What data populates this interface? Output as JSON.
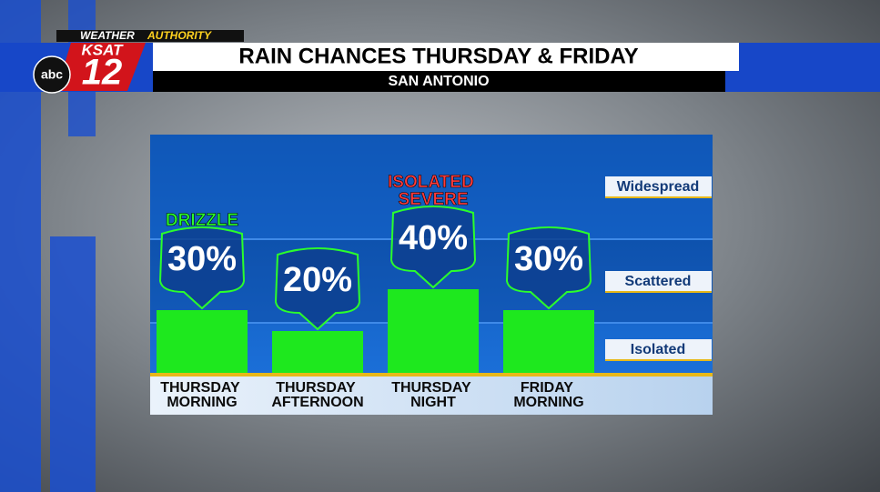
{
  "branding": {
    "weather": "WEATHER",
    "authority": "AUTHORITY",
    "station": "KSAT",
    "channel": "12",
    "network": "abc"
  },
  "chart_data": {
    "type": "bar",
    "title": "RAIN CHANCES THURSDAY & FRIDAY",
    "subtitle": "SAN ANTONIO",
    "categories": [
      "THURSDAY MORNING",
      "THURSDAY AFTERNOON",
      "THURSDAY NIGHT",
      "FRIDAY MORNING"
    ],
    "values": [
      30,
      20,
      40,
      30
    ],
    "value_labels": [
      "30%",
      "20%",
      "40%",
      "30%"
    ],
    "annotations": [
      "DRIZZLE",
      null,
      "ISOLATED SEVERE",
      null
    ],
    "annotation_colors": [
      "#2bff2b",
      null,
      "#ff3b3b",
      null
    ],
    "color": "#1ee81e",
    "band_labels": [
      "Widespread",
      "Scattered",
      "Isolated"
    ]
  }
}
